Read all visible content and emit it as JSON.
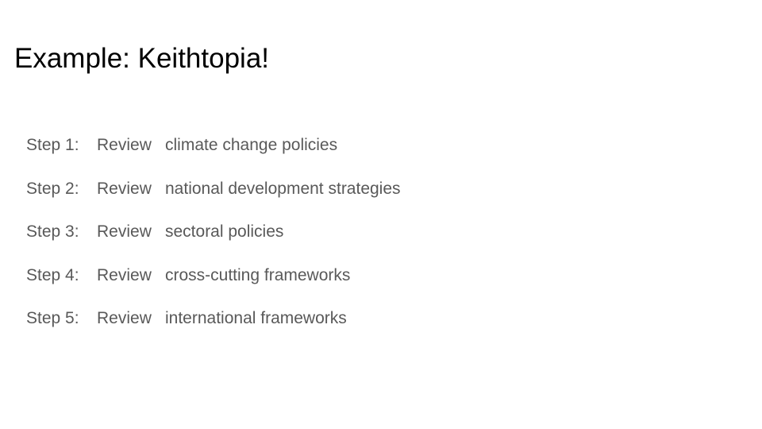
{
  "slide": {
    "title": "Example:  Keithtopia!",
    "steps": [
      {
        "label": "Step 1:",
        "verb": "Review",
        "object": "climate change policies"
      },
      {
        "label": "Step 2:",
        "verb": "Review",
        "object": "national development strategies"
      },
      {
        "label": "Step 3:",
        "verb": "Review",
        "object": "sectoral policies"
      },
      {
        "label": "Step 4:",
        "verb": "Review",
        "object": "cross-cutting frameworks"
      },
      {
        "label": "Step 5:",
        "verb": "Review",
        "object": "international frameworks"
      }
    ]
  },
  "colors": {
    "background": "#ffffff",
    "title": "#000000",
    "body_text": "#595959"
  }
}
